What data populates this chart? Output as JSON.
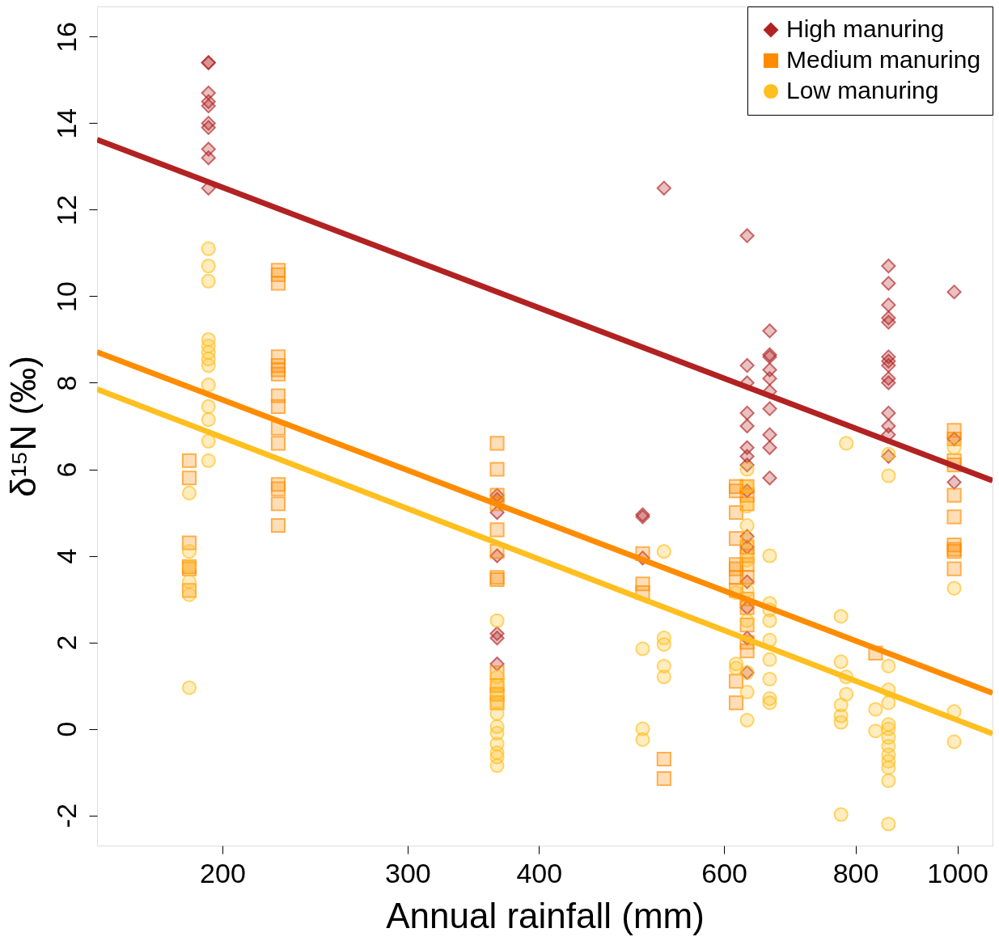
{
  "chart_data": {
    "type": "scatter",
    "xlabel": "Annual rainfall (mm)",
    "ylabel": "δ¹⁵N (‰)",
    "log": "x",
    "xlim": [
      152,
      1080
    ],
    "ylim": [
      -2.7,
      16.7
    ],
    "xticks": [
      200,
      300,
      400,
      600,
      800,
      1000
    ],
    "yticks": [
      -2,
      0,
      2,
      4,
      6,
      8,
      10,
      12,
      14,
      16
    ],
    "grid": false,
    "legend": "top right",
    "series": [
      {
        "name": "High manuring",
        "marker": "diamond",
        "color": "#b22222",
        "x": [
          194,
          194,
          194,
          194,
          194,
          194,
          194,
          194,
          194,
          194,
          365,
          365,
          365,
          365,
          365,
          365,
          365,
          502,
          502,
          502,
          526,
          631,
          631,
          631,
          631,
          631,
          631,
          631,
          631,
          631,
          631,
          631,
          631,
          631,
          631,
          631,
          663,
          663,
          663,
          663,
          663,
          663,
          663,
          663,
          663,
          663,
          860,
          860,
          860,
          860,
          860,
          860,
          860,
          860,
          860,
          860,
          860,
          860,
          860,
          860,
          993,
          993,
          993
        ],
        "values": [
          15.4,
          15.4,
          14.7,
          14.5,
          14.4,
          14.0,
          13.9,
          13.4,
          13.2,
          12.5,
          5.4,
          5.3,
          5.0,
          4.0,
          2.2,
          2.1,
          1.5,
          4.95,
          4.9,
          3.95,
          12.5,
          11.4,
          8.4,
          8.0,
          7.3,
          7.0,
          6.5,
          6.3,
          6.1,
          5.5,
          4.45,
          4.2,
          3.4,
          2.8,
          2.1,
          1.3,
          9.2,
          8.65,
          8.6,
          8.3,
          8.1,
          7.8,
          7.4,
          6.8,
          6.5,
          5.8,
          10.7,
          10.3,
          9.8,
          9.5,
          9.4,
          8.6,
          8.5,
          8.4,
          8.1,
          8.0,
          7.3,
          7.0,
          6.8,
          6.3,
          10.1,
          6.7,
          5.7
        ]
      },
      {
        "name": "Medium manuring",
        "marker": "square",
        "color": "#ff8c00",
        "x": [
          186,
          186,
          186,
          186,
          186,
          186,
          226,
          226,
          226,
          226,
          226,
          226,
          226,
          226,
          226,
          226,
          226,
          226,
          226,
          226,
          226,
          365,
          365,
          365,
          365,
          365,
          365,
          365,
          365,
          365,
          365,
          365,
          365,
          502,
          502,
          502,
          526,
          526,
          616,
          616,
          616,
          616,
          616,
          616,
          616,
          616,
          616,
          616,
          631,
          631,
          631,
          631,
          631,
          631,
          631,
          631,
          631,
          631,
          631,
          631,
          836,
          993,
          993,
          993,
          993,
          993,
          993,
          993,
          993,
          993,
          993
        ],
        "values": [
          6.2,
          5.8,
          4.3,
          3.75,
          3.7,
          3.2,
          10.6,
          10.5,
          10.3,
          8.6,
          8.4,
          8.3,
          8.2,
          7.7,
          7.45,
          6.95,
          6.6,
          5.65,
          5.55,
          5.2,
          4.7,
          6.6,
          6.0,
          5.4,
          5.2,
          4.6,
          4.1,
          3.5,
          3.45,
          1.3,
          1.0,
          0.8,
          0.6,
          4.05,
          3.35,
          3.15,
          -0.7,
          -1.15,
          5.6,
          5.5,
          5.0,
          4.4,
          3.8,
          3.7,
          3.5,
          3.2,
          1.1,
          0.6,
          5.6,
          5.4,
          5.2,
          4.2,
          4.0,
          3.8,
          3.5,
          3.0,
          2.8,
          2.4,
          2.0,
          1.8,
          1.75,
          6.9,
          6.7,
          6.2,
          6.1,
          5.4,
          4.9,
          4.25,
          4.15,
          4.1,
          3.7
        ]
      },
      {
        "name": "Low manuring",
        "marker": "circle",
        "color": "#ffbf1f",
        "x": [
          186,
          186,
          186,
          186,
          186,
          186,
          194,
          194,
          194,
          194,
          194,
          194,
          194,
          194,
          194,
          194,
          194,
          194,
          194,
          365,
          365,
          365,
          365,
          365,
          365,
          365,
          365,
          365,
          365,
          365,
          365,
          502,
          502,
          502,
          526,
          526,
          526,
          526,
          526,
          616,
          616,
          616,
          631,
          631,
          631,
          631,
          631,
          631,
          631,
          631,
          631,
          631,
          631,
          663,
          663,
          663,
          663,
          663,
          663,
          663,
          663,
          663,
          775,
          775,
          775,
          775,
          775,
          775,
          784,
          784,
          784,
          836,
          836,
          860,
          860,
          860,
          860,
          860,
          860,
          860,
          860,
          860,
          860,
          860,
          860,
          860,
          860,
          993,
          993,
          993,
          993
        ],
        "values": [
          5.45,
          4.1,
          3.75,
          3.4,
          3.1,
          0.95,
          11.1,
          10.7,
          10.35,
          9.0,
          8.85,
          8.7,
          8.55,
          8.4,
          7.95,
          7.45,
          7.15,
          6.65,
          6.2,
          2.5,
          1.2,
          1.0,
          0.8,
          0.6,
          0.35,
          0.05,
          -0.1,
          -0.35,
          -0.55,
          -0.65,
          -0.85,
          1.85,
          0.0,
          -0.25,
          4.1,
          2.1,
          1.95,
          1.45,
          1.2,
          3.15,
          1.5,
          1.4,
          6.0,
          5.6,
          5.15,
          4.7,
          4.35,
          3.9,
          3.2,
          2.5,
          1.3,
          0.85,
          0.2,
          4.0,
          2.9,
          2.75,
          2.5,
          2.05,
          1.6,
          1.15,
          0.7,
          0.6,
          2.6,
          1.55,
          0.55,
          0.3,
          0.15,
          -1.98,
          6.6,
          1.2,
          0.8,
          0.45,
          -0.05,
          6.35,
          5.85,
          1.45,
          0.9,
          0.6,
          0.1,
          0.0,
          -0.2,
          -0.4,
          -0.6,
          -0.75,
          -0.9,
          -1.2,
          -2.2,
          6.5,
          3.25,
          0.4,
          -0.3
        ]
      },
      {
        "type": "line",
        "line_style": "solid",
        "color": "#b22222",
        "x": [
          152,
          1080
        ],
        "values": [
          13.62,
          5.74
        ]
      },
      {
        "type": "line",
        "line_style": "solid",
        "color": "#ff8c00",
        "x": [
          152,
          1080
        ],
        "values": [
          8.71,
          0.83
        ]
      },
      {
        "type": "line",
        "line_style": "solid",
        "color": "#ffbf1f",
        "x": [
          152,
          1080
        ],
        "values": [
          7.85,
          -0.11
        ]
      }
    ]
  }
}
